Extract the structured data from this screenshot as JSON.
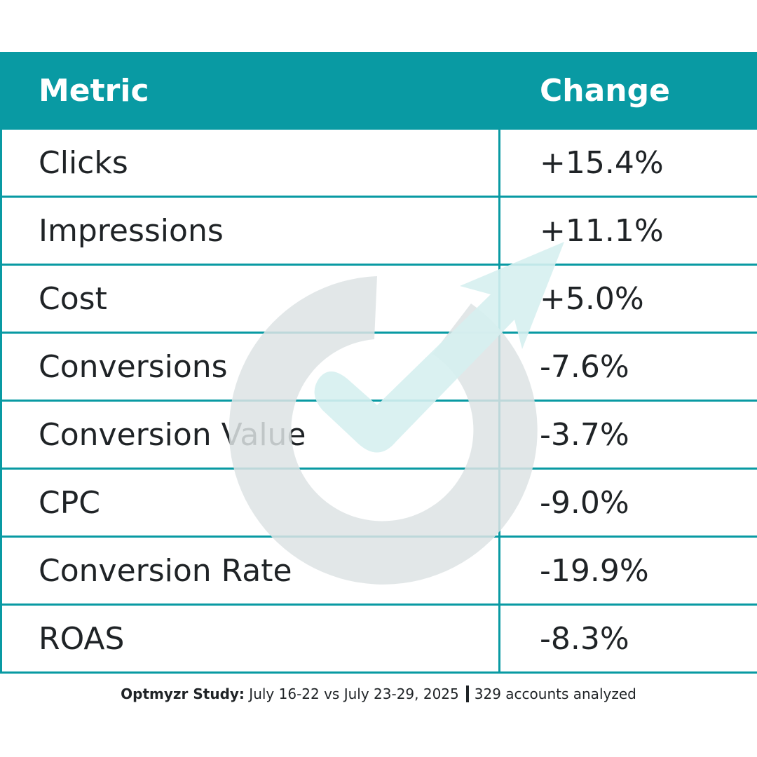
{
  "chart_data": {
    "type": "table",
    "columns": [
      "Metric",
      "Change"
    ],
    "rows": [
      {
        "metric": "Clicks",
        "change": "+15.4%"
      },
      {
        "metric": "Impressions",
        "change": "+11.1%"
      },
      {
        "metric": "Cost",
        "change": "+5.0%"
      },
      {
        "metric": "Conversions",
        "change": "-7.6%"
      },
      {
        "metric": "Conversion Value",
        "change": "-3.7%"
      },
      {
        "metric": "CPC",
        "change": "-9.0%"
      },
      {
        "metric": "Conversion Rate",
        "change": "-19.9%"
      },
      {
        "metric": "ROAS",
        "change": "-8.3%"
      }
    ],
    "values": [
      15.4,
      11.1,
      5.0,
      -7.6,
      -3.7,
      -9.0,
      -19.9,
      -8.3
    ]
  },
  "colors": {
    "header_bg": "#099aa3",
    "border": "#099aa3",
    "text": "#1f2326",
    "watermark_ring": "#dde3e4",
    "watermark_arrow": "#dcf0f1"
  },
  "watermark": {
    "icon": "optmyzr-logo-icon"
  },
  "footer": {
    "brand": "Optmyzr Study:",
    "period": "July 16-22 vs July 23-29, 2025",
    "accounts": "329 accounts analyzed"
  }
}
